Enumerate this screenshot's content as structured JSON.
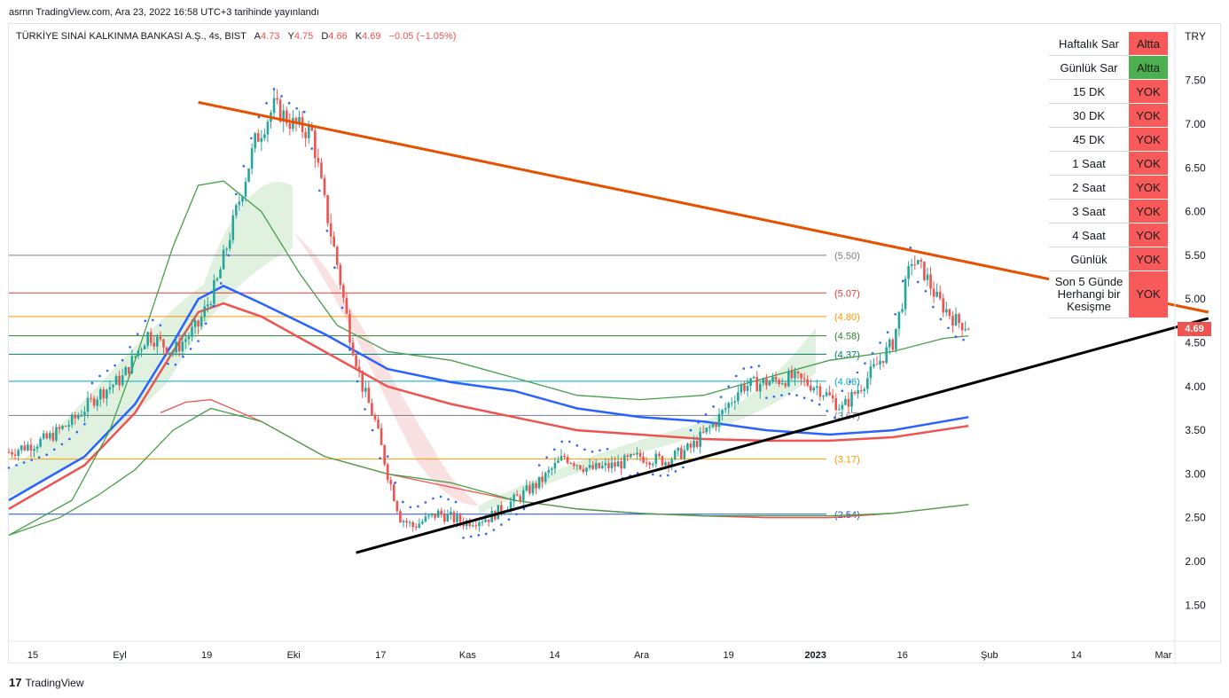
{
  "header": {
    "text": "asrnn TradingView.com, Ara 23, 2022 16:58 UTC+3 tarihinde yayınlandı"
  },
  "legend": {
    "symbol": "TÜRKİYE SINAİ KALKINMA BANKASI A.Ş., 4s, BIST",
    "o_label": "A",
    "o": "4.73",
    "h_label": "Y",
    "h": "4.75",
    "l_label": "D",
    "l": "4.66",
    "c_label": "K",
    "c": "4.69",
    "change": "−0.05 (−1.05%)"
  },
  "currency": "TRY",
  "last_price": "4.69",
  "footer": {
    "logo_mark": "17",
    "logo_text": "TradingView"
  },
  "colors": {
    "up": "#26a69a",
    "down": "#ef5350",
    "ma_blue": "#2962ff",
    "ma_red": "#ef5350",
    "ma_green": "#43a047",
    "trend_orange": "#e65100",
    "trend_black": "#000000",
    "psar": "#2962ff",
    "yes_green": "#4caf50",
    "no_red": "#f85a5a"
  },
  "signal_table": [
    {
      "label": "Haftalık Sar",
      "value": "Altta",
      "color": "#f85a5a"
    },
    {
      "label": "Günlük Sar",
      "value": "Altta",
      "color": "#4caf50"
    },
    {
      "label": "15 DK",
      "value": "YOK",
      "color": "#f85a5a"
    },
    {
      "label": "30 DK",
      "value": "YOK",
      "color": "#f85a5a"
    },
    {
      "label": "45 DK",
      "value": "YOK",
      "color": "#f85a5a"
    },
    {
      "label": "1 Saat",
      "value": "YOK",
      "color": "#f85a5a"
    },
    {
      "label": "2 Saat",
      "value": "YOK",
      "color": "#f85a5a"
    },
    {
      "label": "3 Saat",
      "value": "YOK",
      "color": "#f85a5a"
    },
    {
      "label": "4 Saat",
      "value": "YOK",
      "color": "#f85a5a"
    },
    {
      "label": "Günlük",
      "value": "YOK",
      "color": "#f85a5a"
    },
    {
      "label": "Son 5 Günde Herhangi bir Kesişme",
      "value": "YOK",
      "color": "#f85a5a"
    }
  ],
  "chart_data": {
    "type": "candlestick",
    "y_axis": {
      "ticks": [
        1.5,
        2.0,
        2.5,
        3.0,
        3.5,
        4.0,
        4.5,
        5.0,
        5.5,
        6.0,
        6.5,
        7.0,
        7.5
      ],
      "tick_labels": [
        "1.50",
        "2.00",
        "2.50",
        "3.00",
        "3.50",
        "4.00",
        "4.50",
        "5.00",
        "5.50",
        "6.00",
        "6.50",
        "7.00",
        "7.50"
      ],
      "scale": "linear"
    },
    "x_axis": {
      "tick_labels": [
        "15",
        "Eyl",
        "19",
        "Eki",
        "17",
        "Kas",
        "14",
        "Ara",
        "19",
        "2023",
        "16",
        "Şub",
        "14",
        "Mar"
      ]
    },
    "horizontal_levels": [
      {
        "value": 5.5,
        "label": "(5.50)",
        "color": "#787b86"
      },
      {
        "value": 5.07,
        "label": "(5.07)",
        "color": "#e53935"
      },
      {
        "value": 4.8,
        "label": "(4.80)",
        "color": "#ff9800"
      },
      {
        "value": 4.58,
        "label": "(4.58)",
        "color": "#2e7d32"
      },
      {
        "value": 4.37,
        "label": "(4.37)",
        "color": "#00796b"
      },
      {
        "value": 4.06,
        "label": "(4.06)",
        "color": "#00acc1"
      },
      {
        "value": 3.67,
        "label": "(3.67)",
        "color": "#787b86"
      },
      {
        "value": 3.17,
        "label": "(3.17)",
        "color": "#ff9800"
      },
      {
        "value": 2.54,
        "label": "(2.54)",
        "color": "#1e4fd8"
      }
    ],
    "price_path": [
      [
        0,
        3.25
      ],
      [
        6,
        3.4
      ],
      [
        10,
        3.6
      ],
      [
        14,
        3.9
      ],
      [
        18,
        4.1
      ],
      [
        22,
        4.6
      ],
      [
        26,
        4.4
      ],
      [
        30,
        4.7
      ],
      [
        33,
        5.2
      ],
      [
        36,
        6.0
      ],
      [
        39,
        6.8
      ],
      [
        42,
        7.2
      ],
      [
        45,
        7.0
      ],
      [
        48,
        6.9
      ],
      [
        50,
        6.1
      ],
      [
        52,
        5.4
      ],
      [
        54,
        4.6
      ],
      [
        56,
        4.0
      ],
      [
        58,
        3.6
      ],
      [
        60,
        3.0
      ],
      [
        62,
        2.5
      ],
      [
        64,
        2.4
      ],
      [
        68,
        2.55
      ],
      [
        72,
        2.45
      ],
      [
        76,
        2.5
      ],
      [
        80,
        2.7
      ],
      [
        84,
        2.9
      ],
      [
        88,
        3.2
      ],
      [
        92,
        3.05
      ],
      [
        96,
        3.1
      ],
      [
        100,
        3.2
      ],
      [
        104,
        3.15
      ],
      [
        108,
        3.3
      ],
      [
        112,
        3.6
      ],
      [
        116,
        4.0
      ],
      [
        120,
        4.05
      ],
      [
        124,
        4.1
      ],
      [
        128,
        4.0
      ],
      [
        132,
        3.75
      ],
      [
        136,
        4.1
      ],
      [
        140,
        4.5
      ],
      [
        143,
        5.45
      ],
      [
        145,
        5.3
      ],
      [
        147,
        5.0
      ],
      [
        150,
        4.75
      ],
      [
        152,
        4.69
      ]
    ],
    "moving_averages": [
      {
        "name": "",
        "color": "#2962ff",
        "points": [
          [
            0,
            2.7
          ],
          [
            12,
            3.2
          ],
          [
            20,
            3.8
          ],
          [
            26,
            4.5
          ],
          [
            30,
            5.0
          ],
          [
            34,
            5.15
          ],
          [
            40,
            4.95
          ],
          [
            50,
            4.6
          ],
          [
            60,
            4.2
          ],
          [
            70,
            4.05
          ],
          [
            80,
            3.95
          ],
          [
            90,
            3.75
          ],
          [
            100,
            3.65
          ],
          [
            110,
            3.6
          ],
          [
            120,
            3.5
          ],
          [
            130,
            3.45
          ],
          [
            140,
            3.5
          ],
          [
            152,
            3.65
          ]
        ]
      },
      {
        "name": "",
        "color": "#ef5350",
        "points": [
          [
            0,
            2.6
          ],
          [
            12,
            3.1
          ],
          [
            20,
            3.7
          ],
          [
            26,
            4.4
          ],
          [
            30,
            4.85
          ],
          [
            34,
            4.95
          ],
          [
            40,
            4.8
          ],
          [
            50,
            4.4
          ],
          [
            60,
            4.0
          ],
          [
            70,
            3.8
          ],
          [
            80,
            3.65
          ],
          [
            90,
            3.5
          ],
          [
            100,
            3.45
          ],
          [
            110,
            3.4
          ],
          [
            120,
            3.38
          ],
          [
            130,
            3.38
          ],
          [
            140,
            3.42
          ],
          [
            152,
            3.55
          ]
        ]
      },
      {
        "name": "",
        "color": "#43a047",
        "points": [
          [
            0,
            2.3
          ],
          [
            10,
            2.7
          ],
          [
            16,
            3.5
          ],
          [
            20,
            4.3
          ],
          [
            26,
            5.6
          ],
          [
            30,
            6.3
          ],
          [
            34,
            6.35
          ],
          [
            40,
            6.0
          ],
          [
            46,
            5.3
          ],
          [
            52,
            4.7
          ],
          [
            60,
            4.4
          ],
          [
            70,
            4.3
          ],
          [
            80,
            4.1
          ],
          [
            90,
            3.9
          ],
          [
            100,
            3.85
          ],
          [
            110,
            3.9
          ],
          [
            120,
            4.1
          ],
          [
            130,
            4.3
          ],
          [
            140,
            4.4
          ],
          [
            148,
            4.55
          ],
          [
            152,
            4.58
          ]
        ]
      },
      {
        "name": "",
        "color": "#ef5350",
        "points": [
          [
            24,
            3.7
          ],
          [
            28,
            3.82
          ],
          [
            32,
            3.85
          ],
          [
            40,
            3.6
          ],
          [
            50,
            3.2
          ],
          [
            60,
            3.0
          ],
          [
            70,
            2.85
          ],
          [
            80,
            2.7
          ],
          [
            90,
            2.6
          ],
          [
            100,
            2.55
          ],
          [
            110,
            2.52
          ],
          [
            120,
            2.5
          ],
          [
            130,
            2.5
          ],
          [
            140,
            2.55
          ],
          [
            152,
            2.65
          ]
        ]
      },
      {
        "name": "",
        "color": "#43a047",
        "points": [
          [
            0,
            2.3
          ],
          [
            8,
            2.5
          ],
          [
            14,
            2.75
          ],
          [
            20,
            3.05
          ],
          [
            26,
            3.5
          ],
          [
            32,
            3.75
          ],
          [
            40,
            3.6
          ],
          [
            50,
            3.2
          ],
          [
            60,
            3.0
          ],
          [
            70,
            2.9
          ],
          [
            80,
            2.7
          ],
          [
            90,
            2.6
          ],
          [
            100,
            2.55
          ],
          [
            110,
            2.52
          ],
          [
            120,
            2.52
          ],
          [
            130,
            2.52
          ],
          [
            140,
            2.55
          ],
          [
            152,
            2.65
          ]
        ]
      }
    ],
    "trendlines": [
      {
        "from": [
          30,
          7.25
        ],
        "to": [
          190,
          4.85
        ],
        "color": "#e65100"
      },
      {
        "from": [
          55,
          2.1
        ],
        "to": [
          190,
          4.78
        ],
        "color": "#000000"
      }
    ]
  }
}
